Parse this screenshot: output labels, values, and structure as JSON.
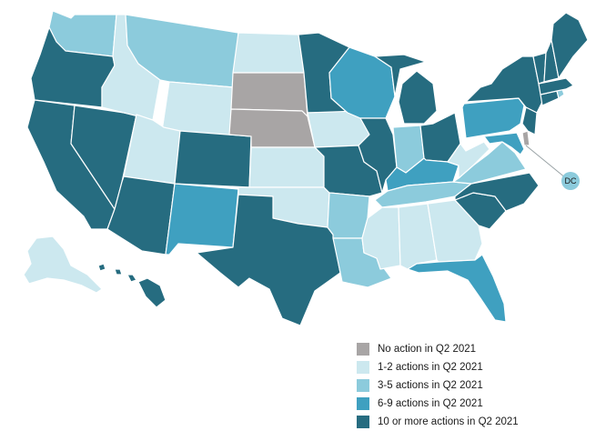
{
  "colors": {
    "none": "#a8a5a5",
    "low": "#cce8ef",
    "mid": "#8ccbdc",
    "high": "#3fa0c0",
    "top": "#266c80"
  },
  "legend": [
    {
      "key": "none",
      "label": "No action in Q2 2021"
    },
    {
      "key": "low",
      "label": "1-2 actions in Q2 2021"
    },
    {
      "key": "mid",
      "label": "3-5 actions in Q2 2021"
    },
    {
      "key": "high",
      "label": "6-9 actions in Q2 2021"
    },
    {
      "key": "top",
      "label": "10 or more actions in Q2 2021"
    }
  ],
  "dc_label": "DC",
  "states": {
    "WA": "mid",
    "OR": "top",
    "CA": "top",
    "NV": "top",
    "ID": "low",
    "MT": "mid",
    "WY": "low",
    "UT": "low",
    "AZ": "top",
    "CO": "top",
    "NM": "high",
    "ND": "low",
    "SD": "none",
    "NE": "none",
    "KS": "low",
    "OK": "low",
    "TX": "top",
    "MN": "top",
    "IA": "low",
    "MO": "top",
    "AR": "mid",
    "LA": "mid",
    "WI": "high",
    "IL": "top",
    "MI": "top",
    "IN": "mid",
    "OH": "top",
    "KY": "high",
    "TN": "mid",
    "MS": "low",
    "AL": "low",
    "GA": "low",
    "FL": "high",
    "SC": "top",
    "NC": "top",
    "VA": "mid",
    "WV": "low",
    "PA": "high",
    "NY": "top",
    "VT": "top",
    "NH": "top",
    "ME": "top",
    "MA": "top",
    "CT": "top",
    "RI": "mid",
    "NJ": "top",
    "DE": "none",
    "MD": "high",
    "DC": "mid",
    "AK": "low",
    "HI": "top"
  }
}
